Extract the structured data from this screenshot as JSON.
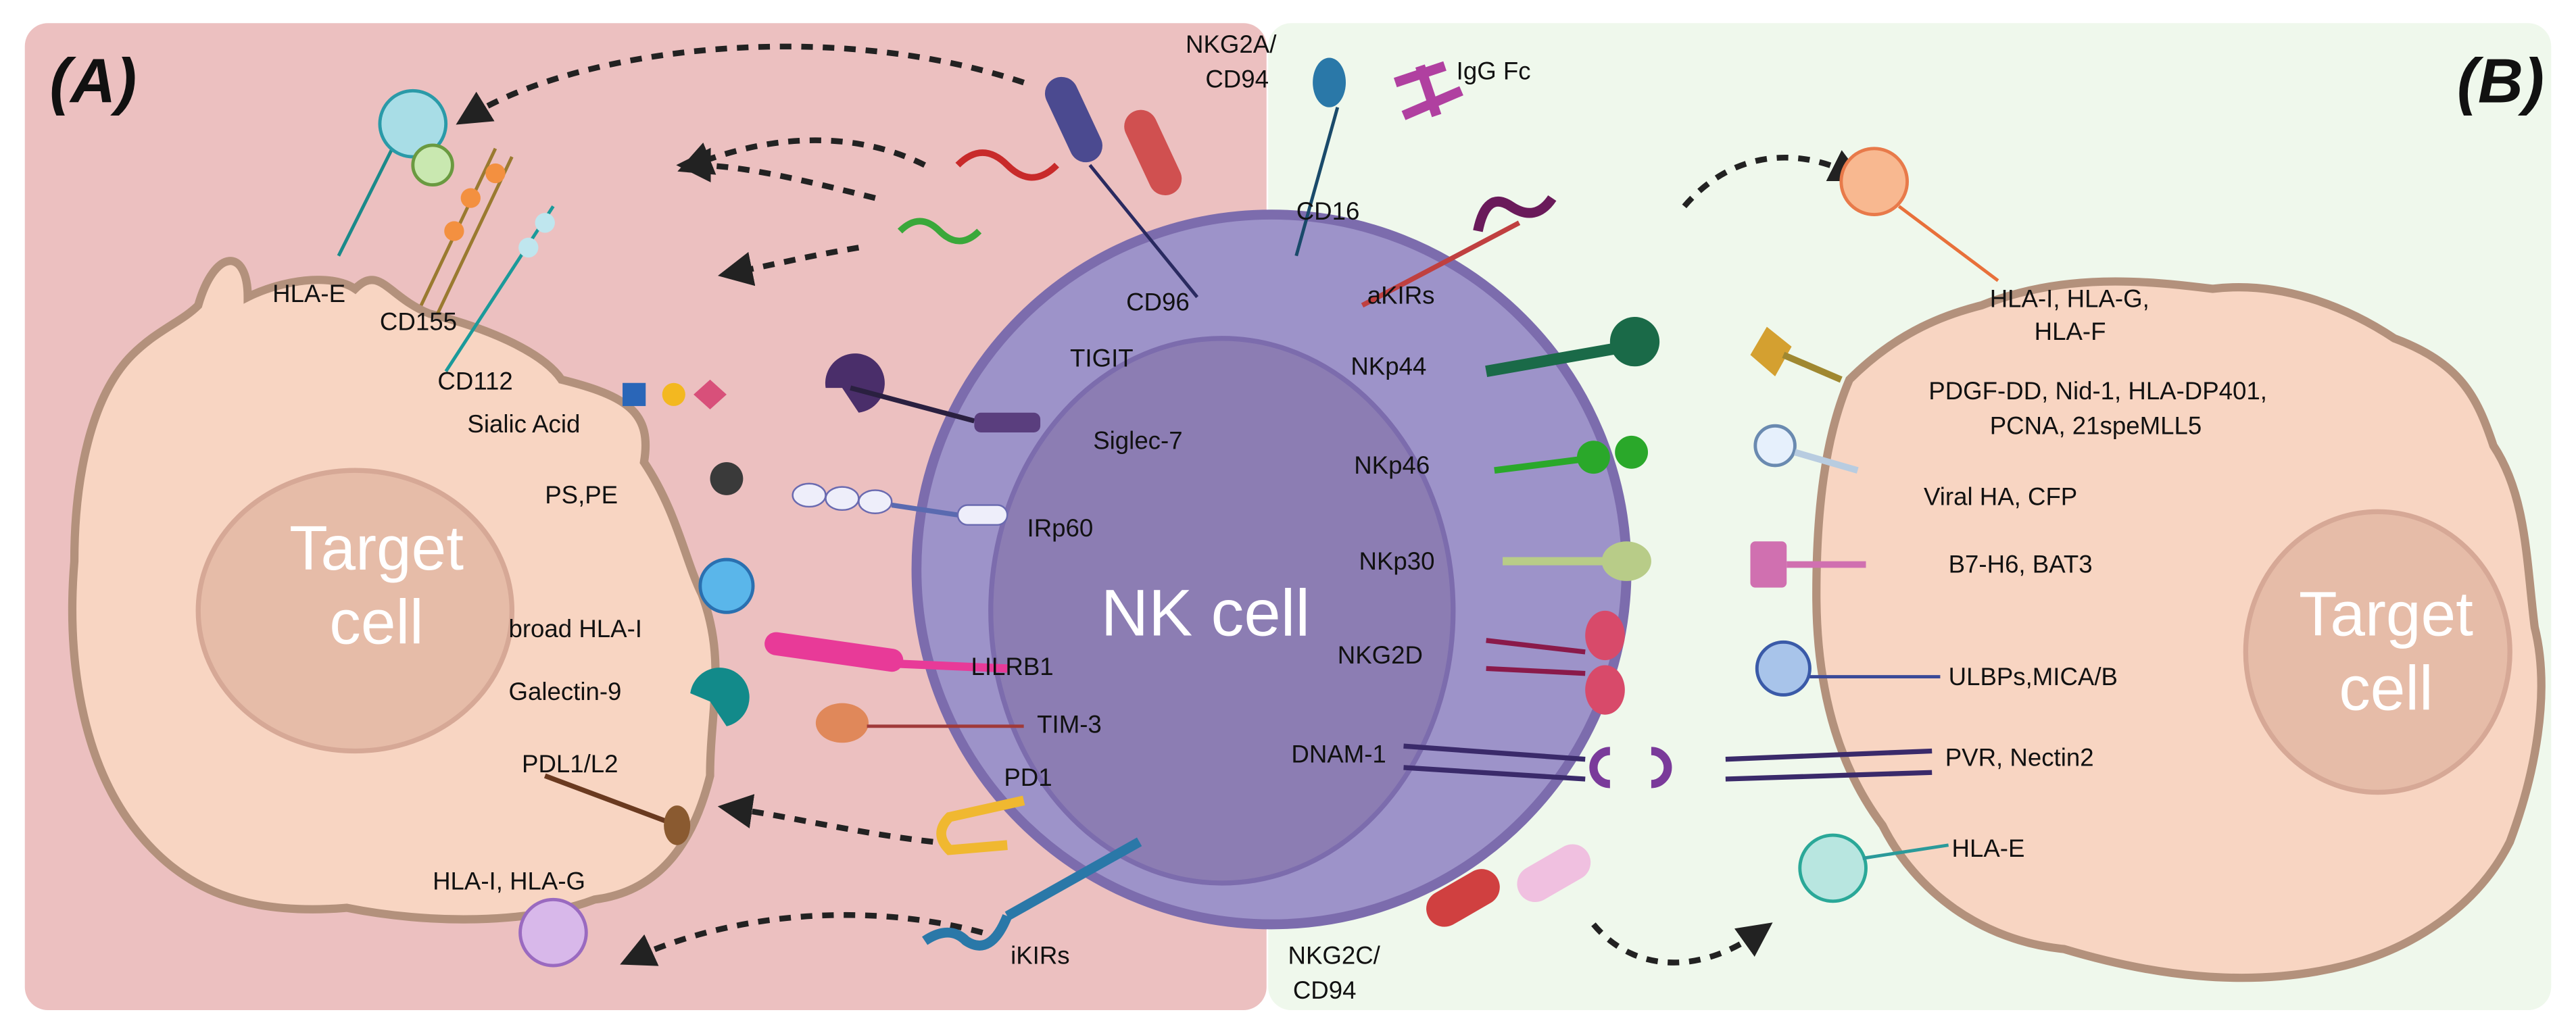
{
  "panels": {
    "a": "(A)",
    "b": "(B)"
  },
  "center": {
    "nk_cell": "NK cell"
  },
  "target_cell": {
    "line1": "Target",
    "line2": "cell"
  },
  "left_ligands": {
    "hla_e": "HLA-E",
    "cd155": "CD155",
    "cd112": "CD112",
    "sialic_acid": "Sialic Acid",
    "ps_pe": "PS,PE",
    "broad_hla_i": "broad HLA-I",
    "galectin_9": "Galectin-9",
    "pdl1_l2": "PDL1/L2",
    "hla_i_hla_g": "HLA-I, HLA-G"
  },
  "inhibitory_receptors": {
    "nkg2a_1": "NKG2A/",
    "nkg2a_2": "CD94",
    "cd96": "CD96",
    "tigit": "TIGIT",
    "siglec7": "Siglec-7",
    "irp60": "IRp60",
    "lilrb1": "LILRB1",
    "tim3": "TIM-3",
    "pd1": "PD1",
    "ikirs": "iKIRs"
  },
  "activating_receptors": {
    "igg_fc": "IgG Fc",
    "cd16": "CD16",
    "akirs": "aKIRs",
    "nkp44": "NKp44",
    "nkp46": "NKp46",
    "nkp30": "NKp30",
    "nkg2d": "NKG2D",
    "dnam1": "DNAM-1",
    "nkg2c_1": "NKG2C/",
    "nkg2c_2": "CD94"
  },
  "right_ligands": {
    "hla_1": "HLA-I, HLA-G,",
    "hla_2": "HLA-F",
    "pdgf_1": "PDGF-DD, Nid-1, HLA-DP401,",
    "pdgf_2": "PCNA, 21speMLL5",
    "viral": "Viral HA, CFP",
    "b7h6": "B7-H6, BAT3",
    "ulbps": "ULBPs,MICA/B",
    "pvr": "PVR, Nectin2",
    "hla_e": "HLA-E"
  },
  "colors": {
    "left_panel": "#ecc0c0",
    "right_panel": "#eff8ec",
    "nk_cell": "#9d93c9",
    "target_cell": "#f8d5c2"
  }
}
